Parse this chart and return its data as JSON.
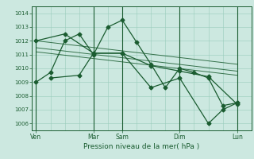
{
  "bg_color": "#cce8e0",
  "grid_color": "#99ccbb",
  "line_color": "#1a5c30",
  "xlabel": "Pression niveau de la mer( hPa )",
  "ylim": [
    1005.5,
    1014.5
  ],
  "yticks": [
    1006,
    1007,
    1008,
    1009,
    1010,
    1011,
    1012,
    1013,
    1014
  ],
  "xtick_labels": [
    "Ven",
    "Mar",
    "Sam",
    "Dim",
    "Lun"
  ],
  "xtick_positions": [
    0,
    4,
    6,
    10,
    14
  ],
  "xlim": [
    -0.3,
    15.0
  ],
  "num_x": 15,
  "day_vlines": [
    0,
    4,
    6,
    10,
    14
  ],
  "series": [
    {
      "x": [
        0,
        1,
        2,
        3,
        4,
        5,
        6,
        7,
        8,
        9,
        10,
        11,
        12,
        13,
        14
      ],
      "y": [
        1009.0,
        1009.7,
        1012.0,
        1012.5,
        1011.0,
        1013.0,
        1013.5,
        1011.9,
        1010.3,
        1008.6,
        1010.0,
        1009.7,
        1009.3,
        1007.3,
        1007.5
      ],
      "marker": "D",
      "markersize": 2.5,
      "linewidth": 0.9
    },
    {
      "x": [
        0,
        2,
        4,
        6,
        8,
        10,
        12,
        14
      ],
      "y": [
        1012.0,
        1012.5,
        1011.1,
        1011.1,
        1010.2,
        1009.8,
        1009.4,
        1007.4
      ],
      "marker": "D",
      "markersize": 2.5,
      "linewidth": 0.9
    },
    {
      "x": [
        1,
        3,
        4,
        6,
        8,
        10,
        12,
        13,
        14
      ],
      "y": [
        1009.3,
        1009.5,
        1011.1,
        1011.1,
        1008.6,
        1009.3,
        1006.0,
        1007.0,
        1007.5
      ],
      "marker": "D",
      "markersize": 2.5,
      "linewidth": 0.9
    }
  ],
  "trend_lines": [
    {
      "x": [
        0,
        14
      ],
      "y": [
        1012.0,
        1010.3
      ]
    },
    {
      "x": [
        0,
        14
      ],
      "y": [
        1011.5,
        1009.8
      ]
    },
    {
      "x": [
        0,
        14
      ],
      "y": [
        1011.2,
        1009.5
      ]
    }
  ]
}
